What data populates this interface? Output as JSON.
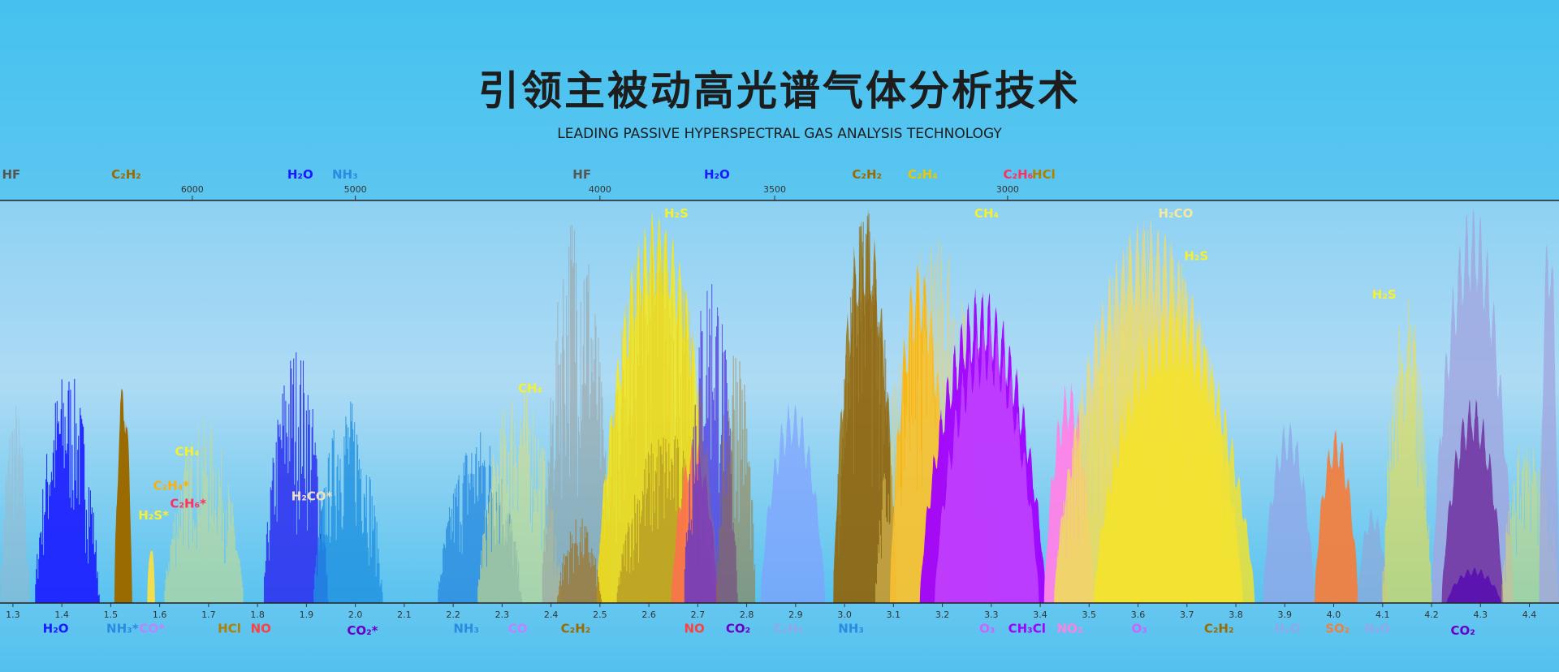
{
  "header": {
    "title": "引领主被动高光谱气体分析技术",
    "subtitle": "LEADING PASSIVE HYPERSPECTRAL GAS ANALYSIS TECHNOLOGY"
  },
  "top_axis": {
    "ticks": [
      6000,
      5000,
      4000,
      3500,
      3000
    ]
  },
  "bottom_axis": {
    "ticks": [
      1.3,
      1.4,
      1.5,
      1.6,
      1.7,
      1.8,
      1.9,
      {
        "value": 2,
        "label": "2.0"
      },
      2.1,
      2.2,
      2.3,
      2.4,
      2.5,
      2.6,
      2.7,
      2.8,
      2.9,
      {
        "value": 3,
        "label": "3.0"
      },
      3.1,
      3.2,
      3.3,
      3.4,
      3.5,
      3.6,
      3.7,
      3.8,
      3.9,
      {
        "value": 4,
        "label": "4.0"
      },
      4.1,
      4.2,
      4.3,
      4.4
    ]
  },
  "top_labels": [
    "HF",
    "C₂H₂",
    "H₂O",
    "NH₃",
    "HF",
    "H₂O",
    "C₂H₂",
    "C₂H₄",
    "C₂H₆",
    "HCl"
  ],
  "band_labels": [
    "H₂S",
    "CH₄",
    "H₂CO",
    "H₂S",
    "H₂S",
    "CH₄",
    "CH₄",
    "C₂H₄*",
    "C₂H₆*",
    "H₂S*",
    "H₂CO*"
  ],
  "bottom_labels": [
    "H₂O",
    "NH₃*",
    "CO*",
    "HCl",
    "NO",
    "CO₂*",
    "NH₃",
    "CO",
    "C₂H₂",
    "NO",
    "CO₂",
    "C₂H₆",
    "NH₃",
    "O₃",
    "CH₃Cl",
    "NO₂",
    "O₃",
    "C₂H₂",
    "H₂O",
    "SO₂",
    "N₂O",
    "CO₂"
  ]
}
